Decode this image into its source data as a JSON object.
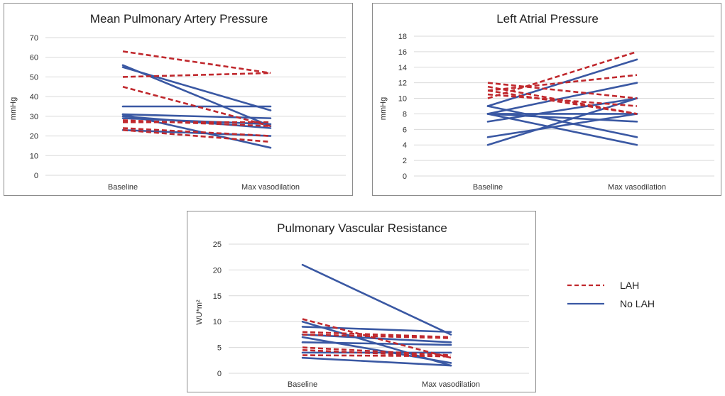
{
  "chart_data": [
    {
      "type": "line",
      "title": "Mean Pulmonary Artery Pressure",
      "ylabel": "mmHg",
      "categories": [
        "Baseline",
        "Max vasodilation"
      ],
      "ylim": [
        0,
        70
      ],
      "yticks": [
        0,
        10,
        20,
        30,
        40,
        50,
        60,
        70
      ],
      "series": [
        {
          "name": "LAH",
          "values": [
            63,
            52
          ]
        },
        {
          "name": "LAH",
          "values": [
            50,
            52
          ]
        },
        {
          "name": "LAH",
          "values": [
            45,
            25
          ]
        },
        {
          "name": "LAH",
          "values": [
            27,
            27
          ]
        },
        {
          "name": "LAH",
          "values": [
            24,
            20
          ]
        },
        {
          "name": "LAH",
          "values": [
            23,
            17
          ]
        },
        {
          "name": "LAH",
          "values": [
            28,
            25
          ]
        },
        {
          "name": "No LAH",
          "values": [
            56,
            25
          ]
        },
        {
          "name": "No LAH",
          "values": [
            55,
            33
          ]
        },
        {
          "name": "No LAH",
          "values": [
            35,
            35
          ]
        },
        {
          "name": "No LAH",
          "values": [
            31,
            29
          ]
        },
        {
          "name": "No LAH",
          "values": [
            30,
            24
          ]
        },
        {
          "name": "No LAH",
          "values": [
            29,
            26
          ]
        },
        {
          "name": "No LAH",
          "values": [
            23,
            20
          ]
        },
        {
          "name": "No LAH",
          "values": [
            31,
            14
          ]
        }
      ]
    },
    {
      "type": "line",
      "title": "Left Atrial Pressure",
      "ylabel": "mmHg",
      "categories": [
        "Baseline",
        "Max vasodilation"
      ],
      "ylim": [
        0,
        18
      ],
      "yticks": [
        0,
        2,
        4,
        6,
        8,
        10,
        12,
        14,
        16,
        18
      ],
      "series": [
        {
          "name": "LAH",
          "values": [
            12,
            10
          ]
        },
        {
          "name": "LAH",
          "values": [
            11.5,
            8
          ]
        },
        {
          "name": "LAH",
          "values": [
            11,
            13
          ]
        },
        {
          "name": "LAH",
          "values": [
            10.5,
            9
          ]
        },
        {
          "name": "LAH",
          "values": [
            10,
            16
          ]
        },
        {
          "name": "LAH",
          "values": [
            11,
            8
          ]
        },
        {
          "name": "No LAH",
          "values": [
            9,
            15
          ]
        },
        {
          "name": "No LAH",
          "values": [
            8,
            12
          ]
        },
        {
          "name": "No LAH",
          "values": [
            7,
            10
          ]
        },
        {
          "name": "No LAH",
          "values": [
            8,
            7
          ]
        },
        {
          "name": "No LAH",
          "values": [
            8,
            4
          ]
        },
        {
          "name": "No LAH",
          "values": [
            9,
            5
          ]
        },
        {
          "name": "No LAH",
          "values": [
            4,
            10
          ]
        },
        {
          "name": "No LAH",
          "values": [
            5,
            8
          ]
        },
        {
          "name": "No LAH",
          "values": [
            8,
            8
          ]
        }
      ]
    },
    {
      "type": "line",
      "title": "Pulmonary Vascular Resistance",
      "ylabel": "WU*m²",
      "categories": [
        "Baseline",
        "Max vasodilation"
      ],
      "ylim": [
        0,
        25
      ],
      "yticks": [
        0,
        5,
        10,
        15,
        20,
        25
      ],
      "series": [
        {
          "name": "LAH",
          "values": [
            10.5,
            3
          ]
        },
        {
          "name": "LAH",
          "values": [
            8,
            7
          ]
        },
        {
          "name": "LAH",
          "values": [
            7.5,
            6.8
          ]
        },
        {
          "name": "LAH",
          "values": [
            5,
            3.5
          ]
        },
        {
          "name": "LAH",
          "values": [
            4.5,
            3.2
          ]
        },
        {
          "name": "LAH",
          "values": [
            3.5,
            3.3
          ]
        },
        {
          "name": "No LAH",
          "values": [
            21,
            7.5
          ]
        },
        {
          "name": "No LAH",
          "values": [
            10,
            1.5
          ]
        },
        {
          "name": "No LAH",
          "values": [
            9,
            8
          ]
        },
        {
          "name": "No LAH",
          "values": [
            7.5,
            6
          ]
        },
        {
          "name": "No LAH",
          "values": [
            7,
            2
          ]
        },
        {
          "name": "No LAH",
          "values": [
            6,
            5.5
          ]
        },
        {
          "name": "No LAH",
          "values": [
            4,
            4
          ]
        },
        {
          "name": "No LAH",
          "values": [
            3,
            1.5
          ]
        }
      ]
    }
  ],
  "legend": {
    "entries": [
      {
        "label": "LAH",
        "color": "#c0282d",
        "style": "dashed"
      },
      {
        "label": "No LAH",
        "color": "#3a58a3",
        "style": "solid"
      }
    ]
  },
  "colors": {
    "LAH": "#c0282d",
    "No LAH": "#3a58a3"
  }
}
